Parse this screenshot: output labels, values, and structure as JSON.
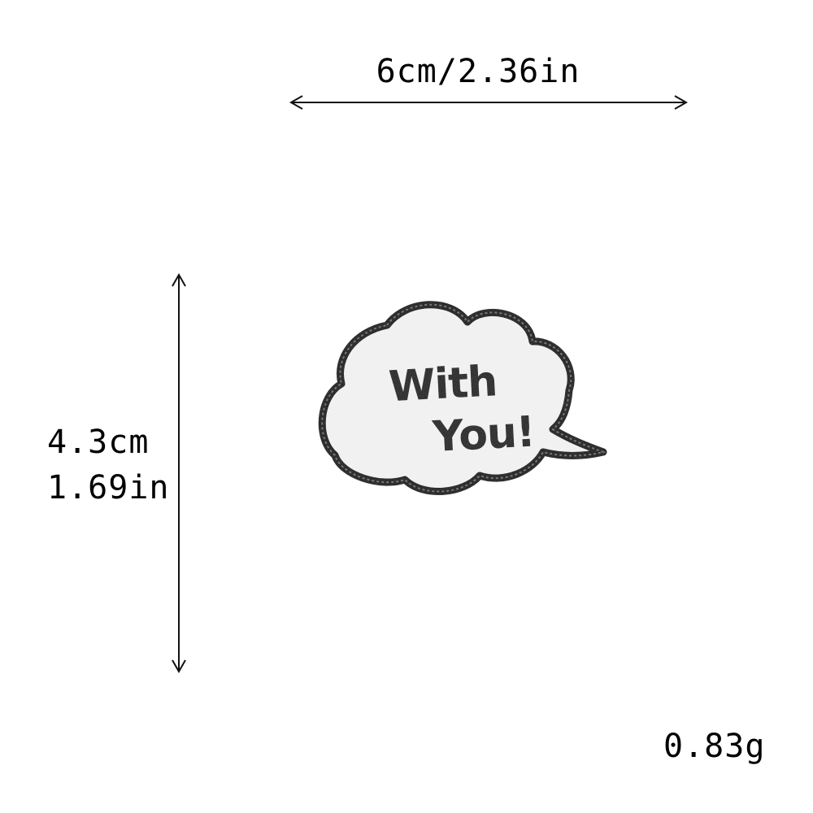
{
  "dimensions": {
    "width_label": "6cm/2.36in",
    "height_label_cm": "4.3cm",
    "height_label_in": "1.69in",
    "weight_label": "0.83g"
  },
  "patch": {
    "line1": "With",
    "line2": "You!",
    "fill_color": "#f4f4f4",
    "border_color": "#111111"
  },
  "arrow_color": "#111111"
}
